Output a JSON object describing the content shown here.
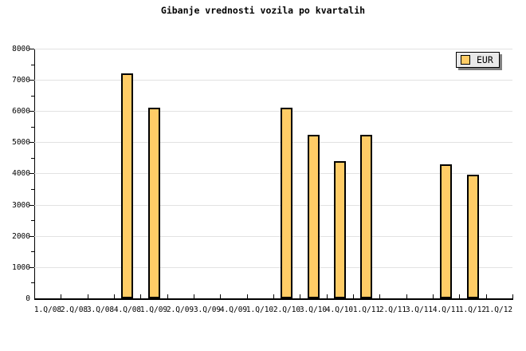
{
  "title": "Gibanje vrednosti vozila po kvartalih",
  "legend": {
    "label": "EUR"
  },
  "colors": {
    "background": "#FFFFFF",
    "bar_fill": "#FFCC66",
    "bar_border": "#000000",
    "grid": "#E2E2E2",
    "axis": "#000000",
    "text": "#000000",
    "legend_bg": "#E9E9E9",
    "legend_shadow": "#808080"
  },
  "chart_data": {
    "type": "bar",
    "title": "Gibanje vrednosti vozila po kvartalih",
    "xlabel": "",
    "ylabel": "",
    "categories": [
      "1.Q/08",
      "2.Q/08",
      "3.Q/08",
      "4.Q/08",
      "1.Q/09",
      "2.Q/09",
      "3.Q/09",
      "4.Q/09",
      "1.Q/10",
      "2.Q/10",
      "3.Q/10",
      "4.Q/10",
      "1.Q/11",
      "2.Q/11",
      "3.Q/11",
      "4.Q/11",
      "1.Q/12",
      "1.Q/12"
    ],
    "series": [
      {
        "name": "EUR",
        "values": [
          null,
          null,
          null,
          7200,
          6100,
          null,
          null,
          null,
          null,
          6100,
          5250,
          4400,
          5250,
          null,
          null,
          4300,
          3950,
          null
        ]
      }
    ],
    "ylim": [
      0,
      8000
    ],
    "yticks": [
      0,
      1000,
      2000,
      3000,
      4000,
      5000,
      6000,
      7000,
      8000
    ],
    "ytick_step": 1000,
    "yminor_step": 500,
    "grid": "horizontal",
    "legend_position": "top-right"
  }
}
